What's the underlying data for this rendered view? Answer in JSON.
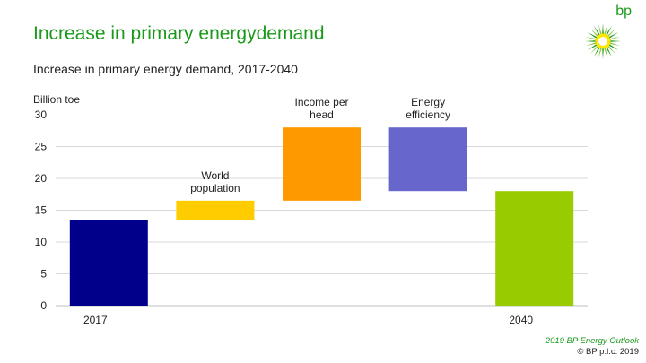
{
  "header": {
    "title": "Increase in primary energydemand",
    "subtitle": "Increase in primary energy demand, 2017-2040"
  },
  "logo": {
    "text": "bp",
    "icon": "helios-sunburst-icon"
  },
  "footer": {
    "line1": "2019 BP Energy Outlook",
    "line2": "© BP p.l.c. 2019"
  },
  "colors": {
    "title": "#1a9a1a",
    "gridline": "#d9d9d9",
    "base_2017": "#00008b",
    "world_population": "#ffcc00",
    "income_per_head": "#ff9900",
    "energy_efficiency": "#6666cc",
    "total_2040": "#99cc00"
  },
  "chart_data": {
    "type": "bar",
    "subtype": "waterfall",
    "title": "Increase in primary energy demand, 2017-2040",
    "ylabel": "Billion toe",
    "ylim": [
      0,
      30
    ],
    "yticks": [
      0,
      5,
      10,
      15,
      20,
      25,
      30
    ],
    "grid": true,
    "bars": [
      {
        "name": "2017",
        "label": "2017",
        "label_position": "below-axis",
        "bottom": 0,
        "top": 13.5,
        "color": "#00008b"
      },
      {
        "name": "World population",
        "label": "World population",
        "label_position": "above-bar",
        "bottom": 13.5,
        "top": 16.5,
        "color": "#ffcc00"
      },
      {
        "name": "Income per head",
        "label": "Income per head",
        "label_position": "above-bar",
        "bottom": 16.5,
        "top": 28,
        "color": "#ff9900"
      },
      {
        "name": "Energy efficiency",
        "label": "Energy efficiency",
        "label_position": "above-bar",
        "bottom": 18,
        "top": 28,
        "color": "#6666cc"
      },
      {
        "name": "2040",
        "label": "2040",
        "label_position": "below-axis",
        "bottom": 0,
        "top": 18,
        "color": "#99cc00"
      }
    ]
  }
}
